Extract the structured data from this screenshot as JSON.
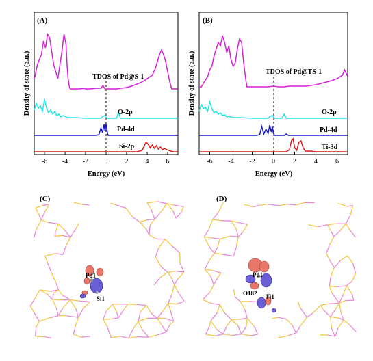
{
  "chart_data": [
    {
      "panel": "(A)",
      "type": "line",
      "xlabel": "Energy (eV)",
      "ylabel": "Density of state (a.u.)",
      "xlim": [
        -7,
        7
      ],
      "xticks": [
        -6,
        -4,
        -2,
        0,
        2,
        4,
        6
      ],
      "fermi_level": 0,
      "grid": false,
      "series": [
        {
          "name": "TDOS of Pd@S-1",
          "color": "#d61fd6",
          "baseline": 77,
          "x": [
            -7,
            -6.9,
            -6.7,
            -6.5,
            -6.3,
            -6.1,
            -5.9,
            -5.7,
            -5.5,
            -5.3,
            -5.1,
            -4.9,
            -4.7,
            -4.5,
            -4.3,
            -4.1,
            -3.9,
            -3.8,
            -3.7,
            -3.6,
            -3.5,
            -3.2,
            -3.0,
            -2.7,
            -2.5,
            -2.2,
            -2.0,
            -1.5,
            -1.0,
            -0.5,
            -0.3,
            -0.1,
            0.1,
            0.3,
            0.5,
            1.0,
            1.5,
            2.0,
            2.5,
            3.0,
            3.5,
            4.0,
            4.5,
            4.8,
            5.0,
            5.2,
            5.4,
            5.6,
            5.8,
            6.0,
            6.2,
            6.4,
            6.6,
            7.0
          ],
          "y": [
            20,
            25,
            40,
            48,
            55,
            75,
            65,
            85,
            80,
            60,
            40,
            30,
            20,
            40,
            60,
            85,
            70,
            40,
            20,
            10,
            5,
            5,
            5,
            5,
            5,
            6,
            5,
            5,
            6,
            6,
            10,
            5,
            5,
            5,
            5,
            5,
            6,
            7,
            9,
            12,
            15,
            20,
            25,
            35,
            45,
            55,
            62,
            55,
            45,
            30,
            15,
            5,
            5,
            5
          ]
        },
        {
          "name": "O-2p",
          "color": "#22e5e5",
          "baseline": 40,
          "x": [
            -7,
            -6.8,
            -6.6,
            -6.4,
            -6.2,
            -6.0,
            -5.8,
            -5.6,
            -5.4,
            -5.2,
            -5.0,
            -4.8,
            -4.6,
            -4.4,
            -4.2,
            -4.0,
            -3.8,
            -3.5,
            -3.0,
            -2.0,
            -1.5,
            -1.0,
            -0.5,
            -0.3,
            -0.1,
            0.1,
            0.5,
            1.0,
            1.2,
            1.4,
            2.0,
            3.0,
            4.0,
            5.0,
            6.0,
            7.0
          ],
          "y": [
            12,
            22,
            15,
            18,
            10,
            28,
            15,
            8,
            12,
            6,
            10,
            4,
            6,
            2,
            4,
            3,
            1,
            1,
            1,
            0,
            0,
            0,
            0,
            3,
            4,
            0,
            0,
            0,
            8,
            0,
            0,
            0,
            0,
            0,
            0,
            0
          ]
        },
        {
          "name": "Pd-4d",
          "color": "#1a1ac8",
          "baseline": 20,
          "x": [
            -7,
            -1,
            -0.7,
            -0.5,
            -0.35,
            -0.2,
            -0.1,
            0.0,
            0.1,
            0.2,
            0.5,
            1.0,
            7.0
          ],
          "y": [
            0,
            0,
            1,
            11,
            4,
            16,
            6,
            17,
            6,
            0,
            0,
            0,
            0
          ]
        },
        {
          "name": "Si-2p",
          "color": "#d61a1a",
          "baseline": 0,
          "x": [
            -7,
            2.0,
            3.0,
            3.5,
            3.7,
            3.9,
            4.1,
            4.3,
            4.5,
            4.7,
            4.9,
            5.1,
            5.3,
            5.5,
            5.7,
            5.9,
            6.1,
            6.3,
            6.5,
            7.0
          ],
          "y": [
            0,
            0,
            0,
            2,
            8,
            14,
            11,
            6,
            10,
            5,
            9,
            4,
            7,
            3,
            5,
            3,
            2,
            1,
            0,
            0
          ]
        }
      ],
      "annotations": [
        "TDOS of Pd@S-1",
        "O-2p",
        "Pd-4d",
        "Si-2p"
      ]
    },
    {
      "panel": "(B)",
      "type": "line",
      "xlabel": "Energy (eV)",
      "ylabel": "Density of state (a.u.)",
      "xlim": [
        -7,
        7
      ],
      "xticks": [
        -6,
        -4,
        -2,
        0,
        2,
        4,
        6
      ],
      "fermi_level": 0,
      "grid": false,
      "series": [
        {
          "name": "TDOS of Pd@TS-1",
          "color": "#d61fd6",
          "baseline": 77,
          "x": [
            -7,
            -6.8,
            -6.6,
            -6.4,
            -6.2,
            -6.0,
            -5.8,
            -5.6,
            -5.4,
            -5.2,
            -5.0,
            -4.8,
            -4.6,
            -4.4,
            -4.2,
            -4.0,
            -3.8,
            -3.6,
            -3.4,
            -3.2,
            -3.0,
            -2.8,
            -2.6,
            -2.5,
            -2.0,
            -1.5,
            -1.0,
            -0.5,
            0,
            0.5,
            1.0,
            1.5,
            2.0,
            2.5,
            3.0,
            3.5,
            4.0,
            4.5,
            5.0,
            5.5,
            6.0,
            6.5,
            6.7,
            7.0
          ],
          "y": [
            5,
            5,
            10,
            15,
            20,
            30,
            35,
            50,
            60,
            70,
            65,
            80,
            70,
            55,
            65,
            45,
            35,
            40,
            60,
            75,
            70,
            40,
            15,
            5,
            5,
            5,
            5,
            5,
            6,
            5,
            5,
            6,
            6,
            6,
            6,
            7,
            8,
            10,
            12,
            14,
            17,
            22,
            30,
            20
          ]
        },
        {
          "name": "O-2p",
          "color": "#22e5e5",
          "baseline": 40,
          "x": [
            -7,
            -6.8,
            -6.6,
            -6.4,
            -6.2,
            -6.0,
            -5.8,
            -5.6,
            -5.4,
            -5.2,
            -5.0,
            -4.8,
            -4.6,
            -4.4,
            -4.2,
            -4.0,
            -3.8,
            -3.5,
            -3.0,
            -2.0,
            -1.5,
            -1.0,
            -0.5,
            -0.3,
            -0.1,
            0.1,
            0.5,
            0.8,
            1.0,
            1.2,
            2.0,
            3.0,
            4.0,
            5.0,
            6.0,
            7.0
          ],
          "y": [
            10,
            20,
            14,
            16,
            10,
            24,
            14,
            8,
            10,
            6,
            8,
            4,
            5,
            2,
            3,
            2,
            1,
            1,
            1,
            0,
            0,
            0,
            0,
            3,
            4,
            0,
            0,
            0,
            6,
            0,
            0,
            0,
            0,
            0,
            0,
            0
          ]
        },
        {
          "name": "Pd-4d",
          "color": "#1a1ac8",
          "baseline": 20,
          "x": [
            -7,
            -1.6,
            -1.3,
            -1.1,
            -0.9,
            -0.7,
            -0.5,
            -0.35,
            -0.2,
            -0.1,
            0.0,
            0.1,
            0.3,
            1.0,
            1.2,
            1.4,
            2.0,
            7.0
          ],
          "y": [
            0,
            0,
            1,
            13,
            2,
            9,
            3,
            15,
            5,
            13,
            3,
            0,
            0,
            0,
            2,
            0,
            0,
            0
          ]
        },
        {
          "name": "Ti-3d",
          "color": "#d61a1a",
          "baseline": 0,
          "x": [
            -7,
            1.2,
            1.5,
            1.7,
            1.85,
            2.0,
            2.2,
            2.4,
            2.6,
            2.8,
            3.0,
            3.5,
            4.0,
            7.0
          ],
          "y": [
            0,
            0,
            3,
            16,
            19,
            6,
            2,
            14,
            16,
            6,
            1,
            1,
            0,
            0
          ]
        }
      ],
      "annotations": [
        "TDOS of Pd@TS-1",
        "O-2p",
        "Pd-4d",
        "Ti-3d"
      ]
    }
  ],
  "structures": [
    {
      "panel": "(C)",
      "atom_labels": [
        "Pd1",
        "Si1"
      ],
      "framework_colors": [
        "#f2c84b",
        "#e88ad8"
      ],
      "isosurface_colors": {
        "accumulation": "#e8776a",
        "depletion": "#6a5fd6"
      }
    },
    {
      "panel": "(D)",
      "atom_labels": [
        "Pd1",
        "O182",
        "Ti1"
      ],
      "framework_colors": [
        "#f2c84b",
        "#e88ad8"
      ],
      "isosurface_colors": {
        "accumulation": "#e8776a",
        "depletion": "#6a5fd6"
      }
    }
  ]
}
